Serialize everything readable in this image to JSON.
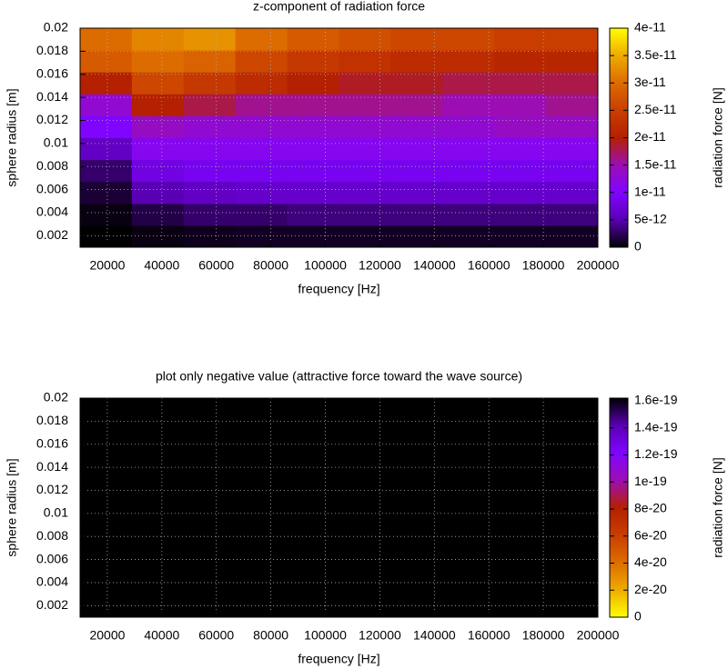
{
  "chart_data": [
    {
      "type": "heatmap",
      "title": "z-component of radiation force",
      "xlabel": "frequency [Hz]",
      "ylabel": "sphere radius [m]",
      "cblabel": "radiation force [N]",
      "x_bins": [
        10000,
        29000,
        48000,
        67000,
        86000,
        105000,
        124000,
        143000,
        162000,
        181000,
        200000
      ],
      "y_bins": [
        0.001,
        0.0029,
        0.0048,
        0.0067,
        0.0086,
        0.0105,
        0.0124,
        0.0143,
        0.0162,
        0.0181,
        0.02
      ],
      "z": [
        [
          0,
          5e-13,
          8e-13,
          1e-12,
          1e-12,
          1e-12,
          1e-12,
          1e-12,
          1e-12,
          1e-12
        ],
        [
          5e-13,
          2e-12,
          3e-12,
          3e-12,
          3.5e-12,
          3.5e-12,
          3.5e-12,
          3.5e-12,
          3.5e-12,
          3.5e-12
        ],
        [
          1.5e-12,
          5e-12,
          6e-12,
          6.5e-12,
          6.5e-12,
          6.5e-12,
          6.5e-12,
          6.5e-12,
          6.5e-12,
          6.5e-12
        ],
        [
          3e-12,
          8e-12,
          9e-12,
          9e-12,
          9e-12,
          9e-12,
          9e-12,
          9e-12,
          9e-12,
          9e-12
        ],
        [
          6e-12,
          1.1e-11,
          1.1e-11,
          1.1e-11,
          1.1e-11,
          1.1e-11,
          1.1e-11,
          1.1e-11,
          1.1e-11,
          1.1e-11
        ],
        [
          1e-11,
          1.4e-11,
          1.3e-11,
          1.3e-11,
          1.3e-11,
          1.3e-11,
          1.3e-11,
          1.3e-11,
          1.4e-11,
          1.4e-11
        ],
        [
          1.3e-11,
          2e-11,
          1.8e-11,
          1.6e-11,
          1.6e-11,
          1.6e-11,
          1.6e-11,
          1.5e-11,
          1.5e-11,
          1.6e-11
        ],
        [
          2e-11,
          2.6e-11,
          2.4e-11,
          2.2e-11,
          2e-11,
          1.9e-11,
          1.9e-11,
          1.8e-11,
          1.8e-11,
          1.8e-11
        ],
        [
          2.8e-11,
          3e-11,
          2.9e-11,
          2.6e-11,
          2.4e-11,
          2.3e-11,
          2.2e-11,
          2.2e-11,
          2.1e-11,
          2.1e-11
        ],
        [
          3e-11,
          3.2e-11,
          3.3e-11,
          3e-11,
          2.8e-11,
          2.7e-11,
          2.6e-11,
          2.6e-11,
          2.5e-11,
          2.5e-11
        ]
      ],
      "xlim": [
        10000,
        200000
      ],
      "ylim": [
        0.001,
        0.02
      ],
      "xticks": [
        20000,
        40000,
        60000,
        80000,
        100000,
        120000,
        140000,
        160000,
        180000,
        200000
      ],
      "yticks": [
        0.002,
        0.004,
        0.006,
        0.008,
        0.01,
        0.012,
        0.014,
        0.016,
        0.018,
        0.02
      ],
      "cblim": [
        0,
        4e-11
      ],
      "cbticks": [
        0,
        5e-12,
        1e-11,
        1.5e-11,
        2e-11,
        2.5e-11,
        3e-11,
        3.5e-11,
        4e-11
      ],
      "palette": [
        "#000000",
        "#5a00b4",
        "#8004ff",
        "#9c0eb4",
        "#b42000",
        "#c93e00",
        "#dd6c00",
        "#eeab00",
        "#ffff00"
      ],
      "grid": true
    },
    {
      "type": "heatmap",
      "title": "plot only negative value (attractive force toward the wave source)",
      "xlabel": "frequency [Hz]",
      "ylabel": "sphere radius [m]",
      "cblabel": "radiation force [N]",
      "background": "#000000",
      "xlim": [
        10000,
        200000
      ],
      "ylim": [
        0.001,
        0.02
      ],
      "xticks": [
        20000,
        40000,
        60000,
        80000,
        100000,
        120000,
        140000,
        160000,
        180000,
        200000
      ],
      "yticks": [
        0.002,
        0.004,
        0.006,
        0.008,
        0.01,
        0.012,
        0.014,
        0.016,
        0.018,
        0.02
      ],
      "cblim": [
        0,
        1.62e-19
      ],
      "cbticks": [
        0,
        2e-20,
        4e-20,
        6e-20,
        8e-20,
        1e-19,
        1.2e-19,
        1.4e-19,
        1.6e-19
      ],
      "palette": [
        "#ffff00",
        "#eeab00",
        "#dd6c00",
        "#c93e00",
        "#b42000",
        "#9c0eb4",
        "#8004ff",
        "#5a00b4",
        "#000000"
      ],
      "grid": true
    }
  ]
}
